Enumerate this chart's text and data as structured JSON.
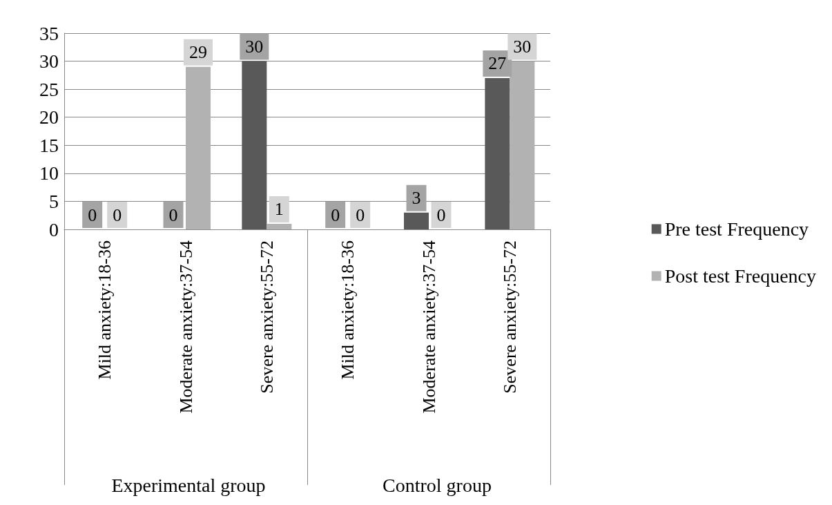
{
  "chart_data": {
    "type": "bar",
    "categories": [
      "Mild anxiety:18-36",
      "Moderate anxiety:37-54",
      "Severe anxiety:55-72",
      "Mild anxiety:18-36",
      "Moderate anxiety:37-54",
      "Severe anxiety:55-72"
    ],
    "series": [
      {
        "name": "Pre test Frequency",
        "color": "#595959",
        "values": [
          0,
          0,
          30,
          0,
          3,
          27
        ]
      },
      {
        "name": "Post test Frequency",
        "color": "#b2b2b2",
        "values": [
          0,
          29,
          1,
          0,
          0,
          30
        ]
      }
    ],
    "ylim": [
      0,
      35
    ],
    "yticks": [
      0,
      5,
      10,
      15,
      20,
      25,
      30,
      35
    ],
    "grid": "y",
    "legend": "right",
    "data_labels": true,
    "annotations": [
      "Experimental group",
      "Control group"
    ]
  }
}
